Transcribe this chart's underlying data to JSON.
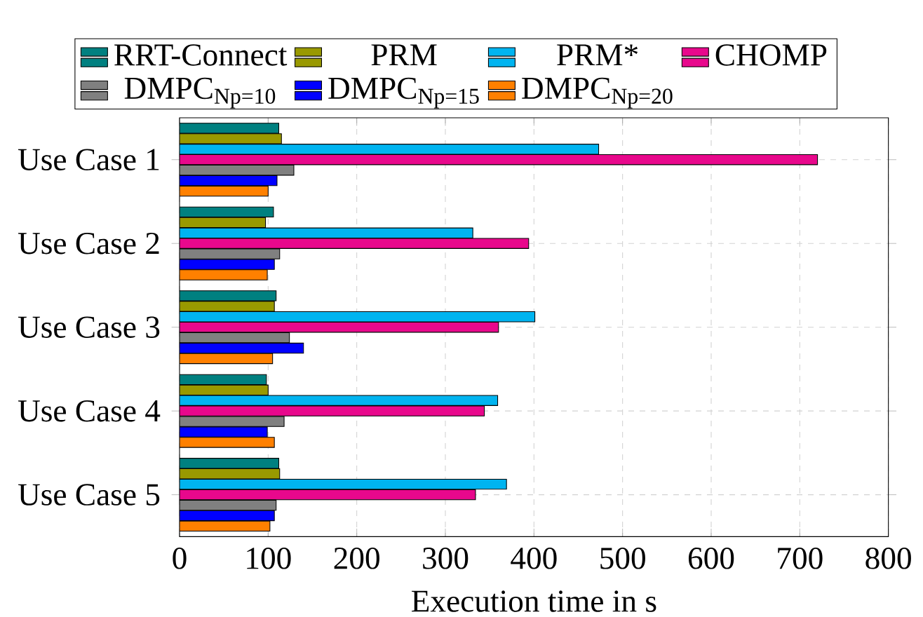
{
  "chart_data": {
    "type": "bar",
    "orientation": "horizontal",
    "categories": [
      "Use Case 1",
      "Use Case 2",
      "Use Case 3",
      "Use Case 4",
      "Use Case 5"
    ],
    "series": [
      {
        "name": "RRT-Connect",
        "color": "#008080",
        "values": [
          112,
          106,
          109,
          98,
          112
        ]
      },
      {
        "name": "PRM",
        "color": "#999900",
        "values": [
          115,
          97,
          107,
          100,
          113
        ]
      },
      {
        "name": "PRM*",
        "color": "#00b4f0",
        "values": [
          473,
          331,
          401,
          359,
          369
        ]
      },
      {
        "name": "CHOMP",
        "color": "#e8088c",
        "values": [
          720,
          394,
          360,
          344,
          334
        ]
      },
      {
        "name": "DMPC$_{Np=10}$",
        "color": "#808080",
        "values": [
          129,
          113,
          124,
          118,
          109
        ]
      },
      {
        "name": "DMPC$_{Np=15}$",
        "color": "#0000ff",
        "values": [
          110,
          107,
          140,
          99,
          107
        ]
      },
      {
        "name": "DMPC$_{Np=20}$",
        "color": "#ff8000",
        "values": [
          100,
          99,
          105,
          107,
          102
        ]
      }
    ],
    "xlim": [
      0,
      800
    ],
    "xticks": [
      0,
      100,
      200,
      300,
      400,
      500,
      600,
      700,
      800
    ],
    "xlabel": "Execution time in s",
    "grid": true,
    "legend": "top"
  }
}
